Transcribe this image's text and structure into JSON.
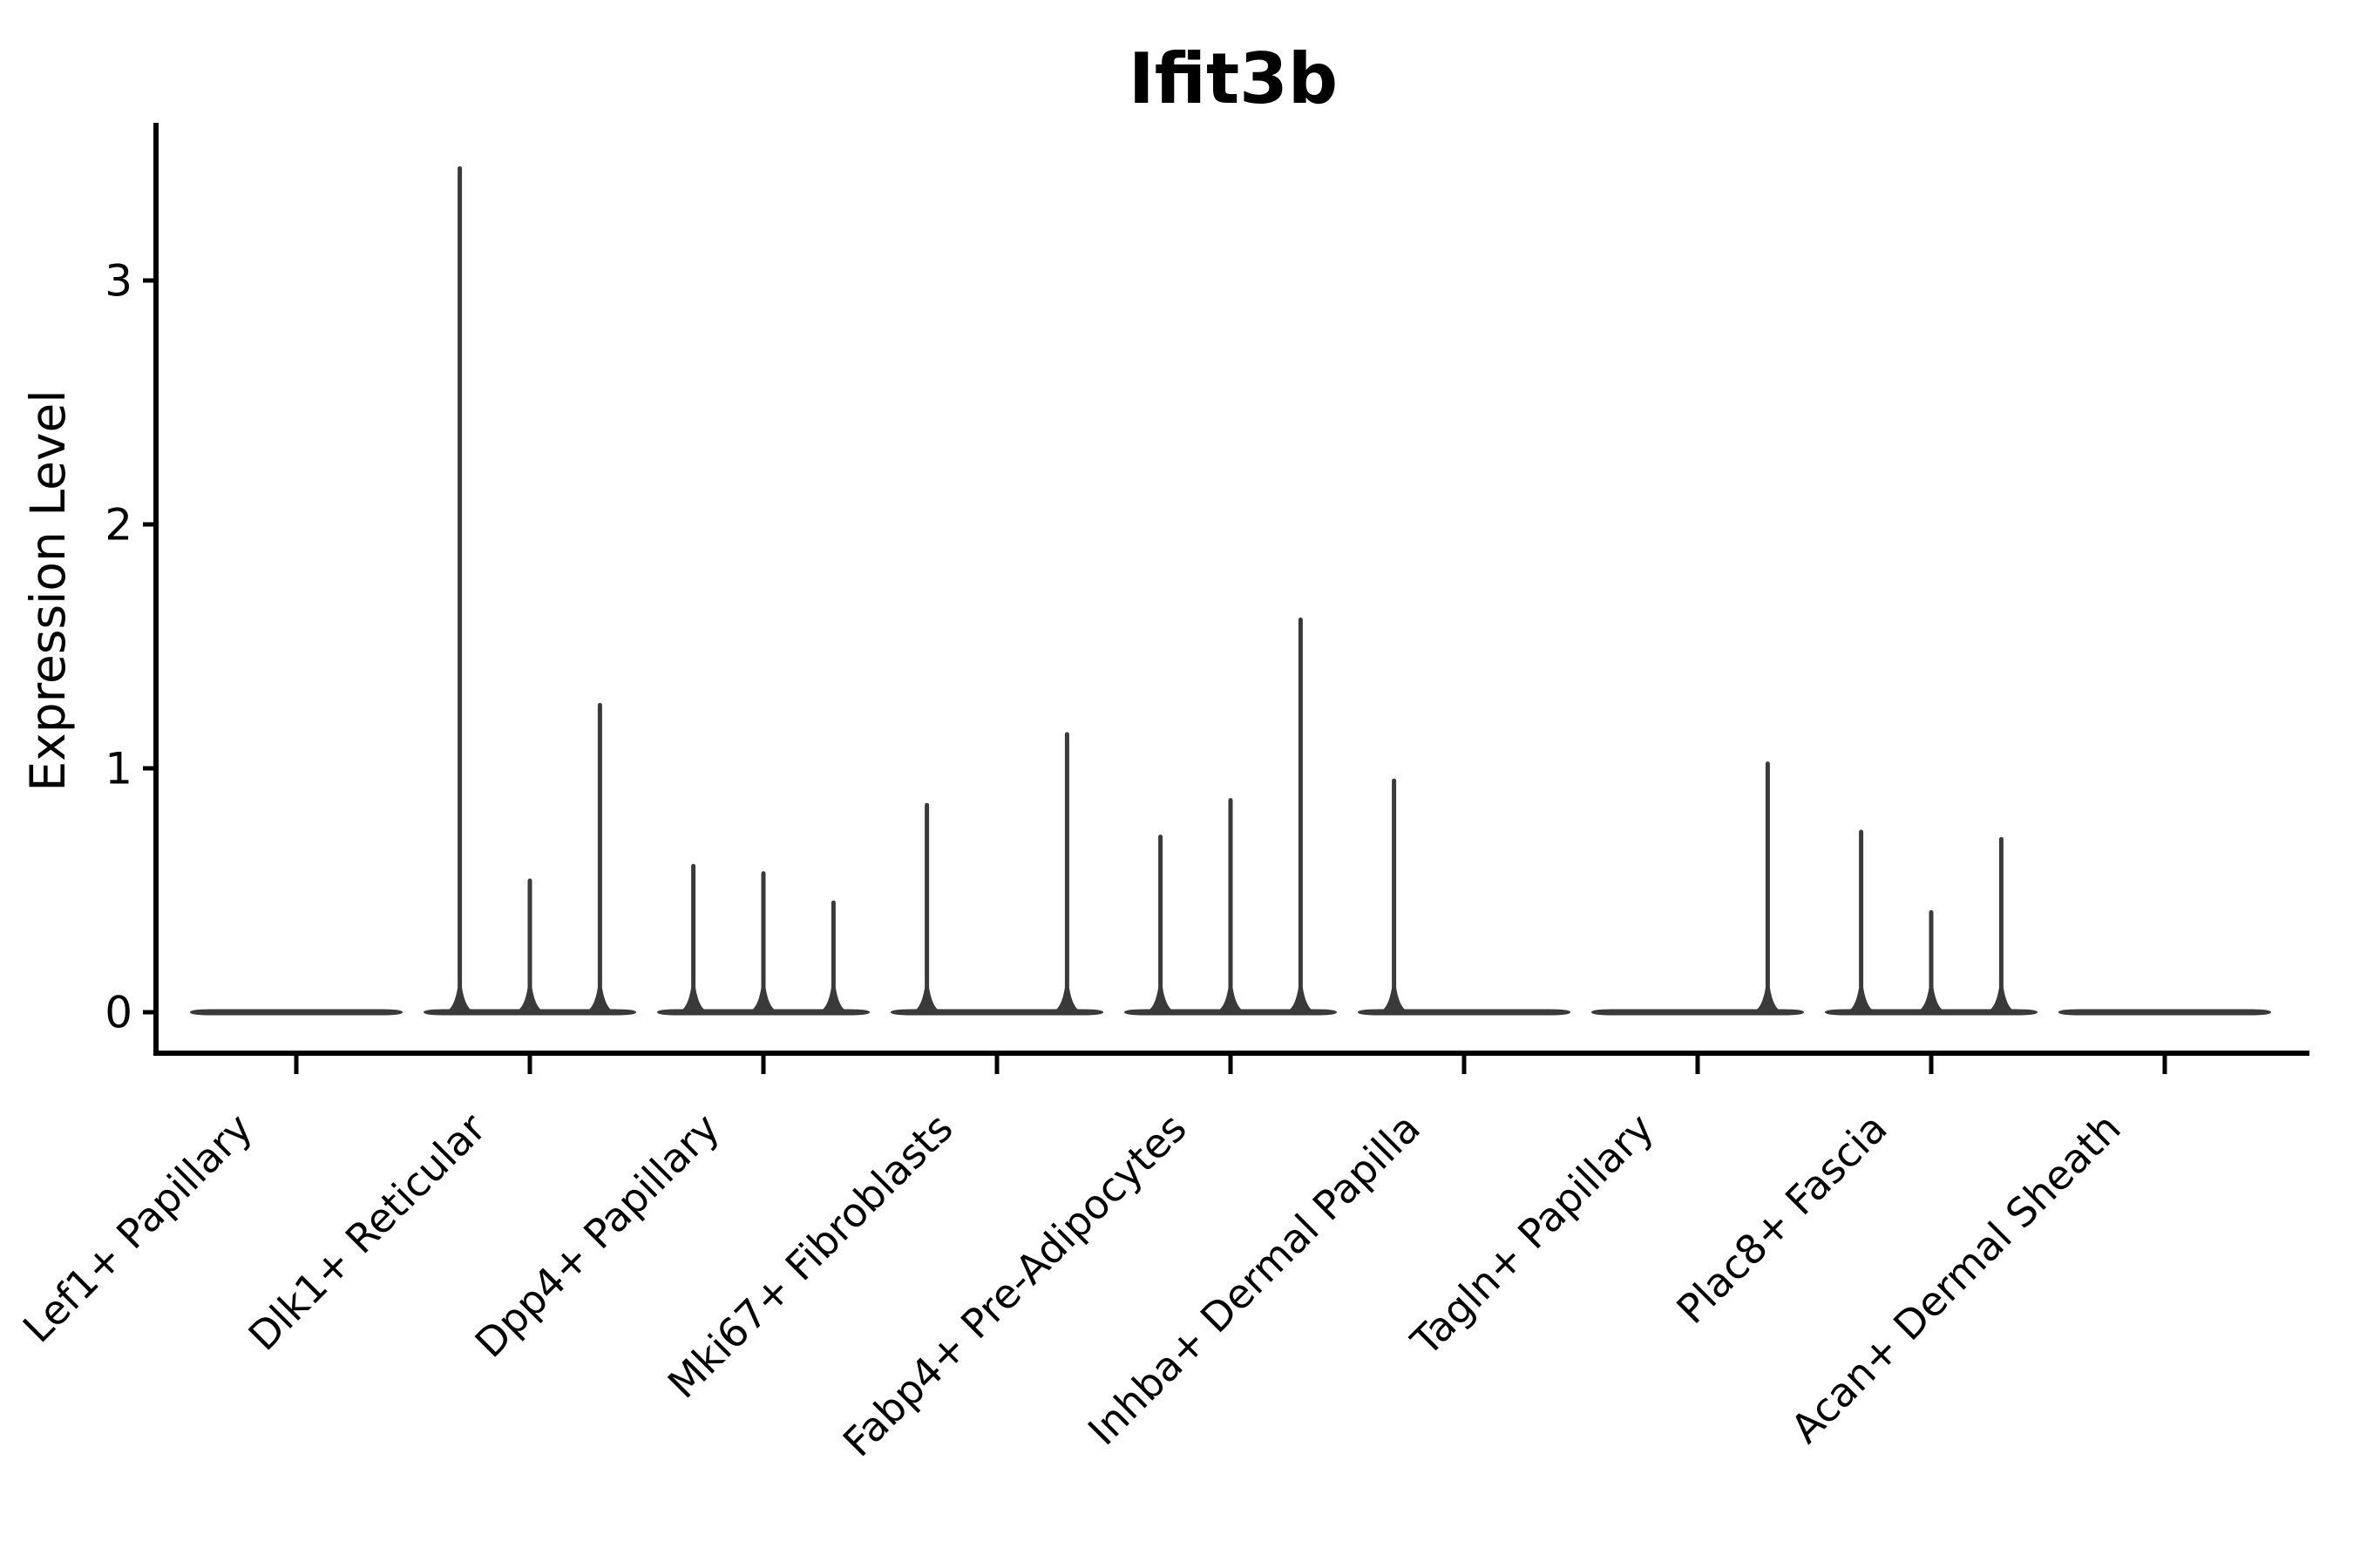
{
  "figure": {
    "background_color": "#ffffff",
    "axis_color": "#000000",
    "violin_color": "#3A3A3A"
  },
  "chart_data": {
    "type": "violin",
    "title": "Ifit3b",
    "xlabel": "",
    "ylabel": "Expression Level",
    "grid": false,
    "legend": "none",
    "ylim": [
      -0.17,
      3.65
    ],
    "yticks": [
      "0",
      "1",
      "2",
      "3"
    ],
    "ytick_values": [
      0,
      1,
      2,
      3
    ],
    "x_tick_rotation_deg": 45,
    "categories": [
      "Lef1+ Papillary",
      "Dlk1+ Reticular",
      "Dpp4+ Papillary",
      "Mki67+ Fibroblasts",
      "Fabp4+ Pre-Adipocytes",
      "Inhba+ Dermal Papilla",
      "Tagln+ Papillary",
      "Plac8+ Fascia",
      "Acan+ Dermal Sheath"
    ],
    "series": [
      {
        "category": "Lef1+ Papillary",
        "baseline": 0,
        "spikes": []
      },
      {
        "category": "Dlk1+ Reticular",
        "baseline": 0,
        "spikes": [
          {
            "offset": -0.3,
            "value": 3.47
          },
          {
            "offset": 0.0,
            "value": 0.55
          },
          {
            "offset": 0.3,
            "value": 1.27
          }
        ]
      },
      {
        "category": "Dpp4+ Papillary",
        "baseline": 0,
        "spikes": [
          {
            "offset": -0.3,
            "value": 0.61
          },
          {
            "offset": 0.0,
            "value": 0.58
          },
          {
            "offset": 0.3,
            "value": 0.46
          }
        ]
      },
      {
        "category": "Mki67+ Fibroblasts",
        "baseline": 0,
        "spikes": [
          {
            "offset": -0.3,
            "value": 0.86
          },
          {
            "offset": 0.3,
            "value": 1.15
          }
        ]
      },
      {
        "category": "Fabp4+ Pre-Adipocytes",
        "baseline": 0,
        "spikes": [
          {
            "offset": -0.3,
            "value": 0.73
          },
          {
            "offset": 0.0,
            "value": 0.88
          },
          {
            "offset": 0.3,
            "value": 1.62
          }
        ]
      },
      {
        "category": "Inhba+ Dermal Papilla",
        "baseline": 0,
        "spikes": [
          {
            "offset": -0.3,
            "value": 0.96
          }
        ]
      },
      {
        "category": "Tagln+ Papillary",
        "baseline": 0,
        "spikes": [
          {
            "offset": 0.3,
            "value": 1.03
          }
        ]
      },
      {
        "category": "Plac8+ Fascia",
        "baseline": 0,
        "spikes": [
          {
            "offset": -0.3,
            "value": 0.75
          },
          {
            "offset": 0.0,
            "value": 0.42
          },
          {
            "offset": 0.3,
            "value": 0.72
          }
        ]
      },
      {
        "category": "Acan+ Dermal Sheath",
        "baseline": 0,
        "spikes": []
      }
    ]
  }
}
